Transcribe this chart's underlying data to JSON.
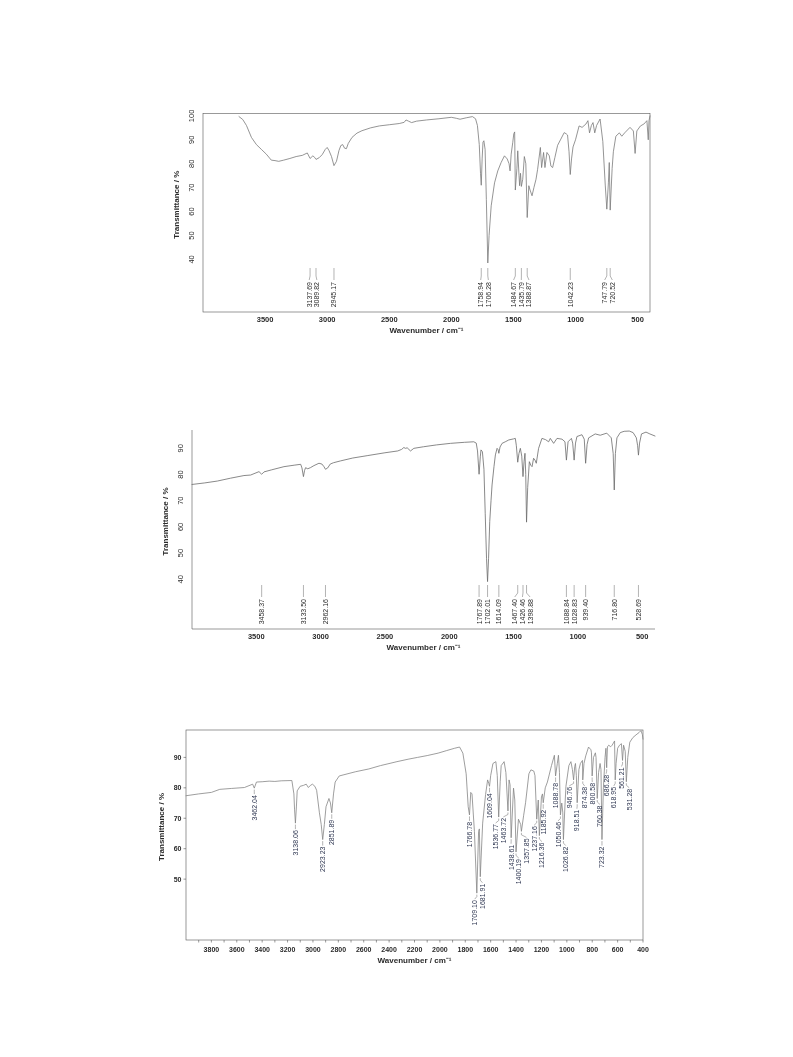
{
  "chart_data": [
    {
      "type": "line",
      "xlabel": "Wavenumber / cm⁻¹",
      "ylabel": "Transmittance / %",
      "xlim": [
        4000,
        400
      ],
      "ylim": [
        18,
        101
      ],
      "xticks": [
        3500,
        3000,
        2500,
        2000,
        1500,
        1000,
        500
      ],
      "yticks": [
        40,
        50,
        60,
        70,
        80,
        90,
        100
      ],
      "x": [
        3710,
        3680,
        3650,
        3610,
        3570,
        3530,
        3490,
        3450,
        3420,
        3390,
        3350,
        3300,
        3250,
        3200,
        3160,
        3137.69,
        3115,
        3100,
        3089.82,
        3065,
        3040,
        3015,
        3000,
        2985,
        2965,
        2945.17,
        2925,
        2905,
        2890,
        2875,
        2860,
        2845,
        2830,
        2800,
        2760,
        2720,
        2650,
        2580,
        2500,
        2420,
        2380,
        2365,
        2345,
        2320,
        2280,
        2200,
        2100,
        2000,
        1960,
        1930,
        1880,
        1830,
        1805,
        1790,
        1775,
        1765,
        1758.94,
        1752,
        1745,
        1738,
        1728,
        1718,
        1706.28,
        1696,
        1679,
        1652,
        1626,
        1599,
        1572,
        1550,
        1535,
        1527,
        1518,
        1505,
        1497,
        1490,
        1484.67,
        1472,
        1465,
        1455,
        1450,
        1443,
        1435.79,
        1425,
        1412,
        1400,
        1388.87,
        1376,
        1366,
        1350,
        1335,
        1318,
        1305,
        1283,
        1273,
        1257,
        1246,
        1230,
        1211,
        1198,
        1184,
        1166,
        1144,
        1118,
        1091,
        1075,
        1064,
        1052,
        1042.23,
        1032,
        1020,
        1000,
        971,
        947,
        916,
        900,
        887,
        872,
        859,
        845,
        830,
        802,
        780,
        760,
        747.79,
        735,
        728,
        720.52,
        705,
        695,
        675,
        647,
        627,
        604,
        561,
        534,
        520,
        506,
        477,
        449,
        425,
        414,
        408,
        400
      ],
      "series": [
        {
          "color": "#7a7a7a",
          "values": [
            99.7,
            98.5,
            96,
            91,
            88,
            86,
            84,
            81.5,
            81.3,
            81,
            81.5,
            82.2,
            83,
            83.5,
            84.5,
            82.2,
            83.3,
            82.6,
            81.8,
            82.5,
            83.8,
            86,
            86.8,
            85.5,
            83,
            79.2,
            81,
            85.5,
            87.6,
            88,
            86.5,
            86.3,
            88.5,
            91,
            92.8,
            93.8,
            95,
            95.8,
            96.3,
            96.8,
            97.3,
            98.3,
            97.8,
            97.2,
            97.8,
            98.3,
            98.8,
            99.4,
            99,
            98.6,
            99.2,
            99.7,
            98.8,
            96,
            88,
            76,
            71,
            82,
            89,
            89.6,
            86,
            65,
            38.5,
            50,
            62.4,
            72,
            77,
            80.5,
            83.3,
            82,
            80,
            77,
            84,
            89,
            92.5,
            93.3,
            69,
            78,
            85.4,
            75,
            70.8,
            76,
            70.5,
            73.5,
            83,
            80,
            57.5,
            70.8,
            69,
            66.6,
            70,
            73.5,
            77.7,
            86.8,
            78.4,
            84.7,
            78.4,
            84.7,
            83.3,
            79,
            78.4,
            82.6,
            87.7,
            90.3,
            93,
            92.5,
            92,
            85,
            75.5,
            82,
            87,
            90,
            95.8,
            95.2,
            96.6,
            98,
            92.9,
            96,
            97.2,
            92.9,
            96,
            98.7,
            89.3,
            70.7,
            61,
            72,
            80.5,
            60.6,
            78,
            85,
            91.5,
            92.9,
            91.5,
            92.9,
            95.2,
            93.7,
            84.3,
            93.7,
            95.8,
            96.6,
            98,
            90,
            98,
            100
          ]
        }
      ],
      "annotations": [
        {
          "text": "3137.69",
          "x": 3137.69
        },
        {
          "text": "3089.82",
          "x": 3089.82
        },
        {
          "text": "2945.17",
          "x": 2945.17
        },
        {
          "text": "1758.94",
          "x": 1758.94
        },
        {
          "text": "1706.28",
          "x": 1706.28
        },
        {
          "text": "1484.67",
          "x": 1484.67
        },
        {
          "text": "1435.79",
          "x": 1435.79
        },
        {
          "text": "1388.87",
          "x": 1388.87
        },
        {
          "text": "1042.23",
          "x": 1042.23
        },
        {
          "text": "747.79",
          "x": 747.79
        },
        {
          "text": "720.52",
          "x": 720.52
        }
      ]
    },
    {
      "type": "line",
      "xlabel": "Wavenumber / cm⁻¹",
      "ylabel": "Transmittance / %",
      "xlim": [
        4000,
        400
      ],
      "ylim": [
        21,
        97
      ],
      "xticks": [
        3500,
        3000,
        2500,
        2000,
        1500,
        1000,
        500
      ],
      "yticks": [
        40,
        50,
        60,
        70,
        80,
        90
      ],
      "x": [
        4000,
        3900,
        3803,
        3700,
        3596,
        3544,
        3479,
        3458.37,
        3440,
        3380,
        3285,
        3200,
        3155,
        3145,
        3133.5,
        3125,
        3117,
        3100,
        3080,
        3052,
        3013,
        2990,
        2974,
        2962.16,
        2945,
        2925,
        2900,
        2845,
        2750,
        2638,
        2500,
        2400,
        2370,
        2353,
        2340,
        2327,
        2301,
        2275,
        2200,
        2100,
        1990,
        1880,
        1809,
        1790,
        1780,
        1767.89,
        1758,
        1753,
        1742,
        1730,
        1720,
        1710,
        1702.01,
        1694,
        1685,
        1675,
        1667,
        1652,
        1641,
        1628,
        1620,
        1614.09,
        1605,
        1589,
        1560,
        1537,
        1500,
        1486,
        1478,
        1467.4,
        1458,
        1447,
        1436,
        1426.46,
        1418,
        1411,
        1405,
        1398.88,
        1390,
        1377,
        1365,
        1356,
        1344,
        1333,
        1323,
        1305,
        1279,
        1250,
        1227,
        1214,
        1188,
        1162,
        1123,
        1100,
        1088.84,
        1076,
        1050,
        1040,
        1028.83,
        1018,
        1007,
        968,
        950,
        939.4,
        928,
        916,
        865,
        826,
        775,
        740,
        725,
        716.8,
        708,
        696,
        670,
        640,
        600,
        570,
        545,
        535,
        528.69,
        520,
        505,
        470,
        440,
        400
      ],
      "series": [
        {
          "color": "#6b6b6b",
          "values": [
            76.2,
            76.8,
            77.5,
            78.6,
            79.6,
            79.8,
            81.1,
            80.1,
            81,
            81.8,
            83,
            83.6,
            83.9,
            82.5,
            79.2,
            81.5,
            82.6,
            82.2,
            82.6,
            83.4,
            84.3,
            84,
            83,
            82,
            82.5,
            84,
            84.5,
            85.2,
            86.3,
            87.2,
            88.3,
            89,
            89.6,
            90.3,
            90,
            90.2,
            89,
            90,
            90.6,
            91.3,
            91.9,
            92.3,
            92.5,
            92,
            89,
            80.1,
            87,
            89.4,
            88.7,
            82,
            65,
            48,
            39.1,
            48,
            62,
            70,
            76,
            83,
            87.5,
            90,
            89.5,
            88.1,
            90.5,
            91.9,
            92.6,
            93.2,
            93.6,
            93.8,
            91,
            84.7,
            88,
            90,
            87,
            79.2,
            85,
            88.1,
            80,
            61.8,
            75,
            84.9,
            83.5,
            83,
            86.2,
            85.5,
            84.3,
            90,
            93.8,
            93.3,
            92.5,
            93.8,
            91.9,
            93.8,
            93.5,
            92.5,
            85.5,
            92.5,
            93.8,
            92,
            85.5,
            92,
            94.5,
            95.2,
            93.5,
            84.3,
            91.5,
            94,
            95.5,
            95,
            95.8,
            94,
            88,
            74.1,
            88,
            94,
            96,
            96.5,
            96.6,
            96,
            94,
            91,
            87.4,
            92,
            95.5,
            96.2,
            95.5,
            94.7
          ]
        }
      ],
      "annotations": [
        {
          "text": "3458.37",
          "x": 3458.37
        },
        {
          "text": "3133.50",
          "x": 3133.5
        },
        {
          "text": "2962.16",
          "x": 2962.16
        },
        {
          "text": "1767.89",
          "x": 1767.89
        },
        {
          "text": "1702.01",
          "x": 1702.01
        },
        {
          "text": "1614.09",
          "x": 1614.09
        },
        {
          "text": "1467.40",
          "x": 1467.4
        },
        {
          "text": "1426.46",
          "x": 1426.46
        },
        {
          "text": "1398.88",
          "x": 1398.88
        },
        {
          "text": "1088.84",
          "x": 1088.84
        },
        {
          "text": "1028.83",
          "x": 1028.83
        },
        {
          "text": "939.40",
          "x": 939.4
        },
        {
          "text": "716.80",
          "x": 716.8
        },
        {
          "text": "528.69",
          "x": 528.69
        }
      ]
    },
    {
      "type": "line",
      "xlabel": "Wavenumber / cm⁻¹",
      "ylabel": "Transmittance / %",
      "xlim": [
        4000,
        400
      ],
      "ylim": [
        30,
        99
      ],
      "xticks": [
        {
          "value": 3900,
          "label": null
        },
        3800,
        {
          "value": 3700,
          "label": null
        },
        3600,
        {
          "value": 3500,
          "label": null
        },
        3400,
        {
          "value": 3300,
          "label": null
        },
        3200,
        {
          "value": 3100,
          "label": null
        },
        3000,
        {
          "value": 2900,
          "label": null
        },
        2800,
        {
          "value": 2700,
          "label": null
        },
        2600,
        {
          "value": 2500,
          "label": null
        },
        2400,
        {
          "value": 2300,
          "label": null
        },
        2200,
        {
          "value": 2100,
          "label": null
        },
        2000,
        {
          "value": 1900,
          "label": null
        },
        1800,
        {
          "value": 1700,
          "label": null
        },
        1600,
        {
          "value": 1500,
          "label": null
        },
        1400,
        {
          "value": 1300,
          "label": null
        },
        1200,
        {
          "value": 1100,
          "label": null
        },
        1000,
        {
          "value": 900,
          "label": null
        },
        800,
        {
          "value": 700,
          "label": null
        },
        600,
        {
          "value": 500,
          "label": null
        },
        400
      ],
      "yticks": [
        50,
        60,
        70,
        80,
        90
      ],
      "x": [
        4000,
        3900,
        3800,
        3734,
        3640,
        3540,
        3475,
        3462.04,
        3445,
        3400,
        3345,
        3300,
        3250,
        3166,
        3150,
        3145,
        3138.06,
        3130,
        3124,
        3101,
        3075,
        3053,
        3036,
        3020,
        3004,
        2985,
        2971,
        2949,
        2935,
        2923.23,
        2910,
        2897,
        2874,
        2862,
        2851.89,
        2838,
        2825,
        2793,
        2663,
        2560,
        2468,
        2338,
        2250,
        2176,
        2100,
        2014,
        1950,
        1884,
        1845,
        1819,
        1793,
        1777,
        1766.78,
        1757,
        1747,
        1728,
        1709.1,
        1695,
        1689,
        1681.91,
        1663,
        1640,
        1624,
        1615,
        1609.04,
        1600,
        1582,
        1559,
        1548,
        1536.77,
        1525,
        1517,
        1494,
        1480,
        1463.72,
        1455,
        1447,
        1438.61,
        1420,
        1410,
        1400.19,
        1381,
        1364,
        1357.85,
        1340,
        1325,
        1299,
        1283,
        1260,
        1251,
        1237.16,
        1225,
        1216.36,
        1200,
        1192,
        1185.92,
        1170,
        1153,
        1121,
        1098,
        1088.78,
        1075,
        1066,
        1058,
        1050.46,
        1040,
        1032,
        1026.82,
        1015,
        1007,
        984,
        968,
        956,
        946.76,
        938,
        932,
        925,
        918.51,
        905,
        893,
        877,
        874.38,
        865,
        851,
        829,
        810,
        806,
        800.58,
        790,
        775,
        770,
        760.38,
        750,
        738,
        731,
        723.32,
        712,
        699,
        692,
        686.28,
        680,
        670,
        655,
        643,
        624,
        618.95,
        612,
        600,
        585,
        570,
        561.21,
        553,
        540,
        531.28,
        520,
        504,
        480,
        455,
        430,
        416,
        405,
        400
      ],
      "series": [
        {
          "color": "#858585",
          "values": [
            77.4,
            78,
            78.5,
            79.5,
            79.8,
            80.1,
            81.2,
            79.9,
            81.9,
            82,
            82.2,
            82.1,
            82.3,
            82.4,
            78,
            73,
            68.4,
            74,
            79,
            80.5,
            80.8,
            81.2,
            80.1,
            80.8,
            81.2,
            80.5,
            79.2,
            71.8,
            68,
            63,
            68,
            73.8,
            76.5,
            75,
            71.8,
            78,
            81.9,
            83.9,
            85.3,
            86.2,
            87.3,
            88.6,
            89.4,
            90,
            90.6,
            91.4,
            92.2,
            93,
            93.4,
            91.4,
            84.6,
            73.8,
            71.1,
            78.5,
            78,
            65.7,
            45.4,
            65.7,
            66.5,
            50.8,
            68.4,
            77.8,
            82.6,
            81.5,
            80.5,
            84,
            88,
            88.6,
            84,
            70.4,
            82,
            87.3,
            88.6,
            85,
            72.4,
            82.6,
            81,
            63.6,
            79.9,
            76,
            58.9,
            69.7,
            68,
            65.7,
            71,
            75.1,
            84.6,
            85.9,
            85.5,
            84,
            69.7,
            76,
            64.3,
            77,
            78,
            75.1,
            80,
            81.9,
            87.3,
            90.7,
            83.9,
            88,
            90.7,
            85,
            71.1,
            75,
            72,
            63,
            74,
            80.5,
            87.3,
            88.6,
            86,
            82.6,
            87,
            88,
            84,
            75.1,
            86,
            88,
            89,
            82.6,
            88,
            90.5,
            93.4,
            92.5,
            91.5,
            83.9,
            90,
            91.5,
            90,
            76.5,
            85,
            88,
            86,
            63,
            80,
            90,
            93,
            86.6,
            93.5,
            94,
            93.5,
            94,
            95.4,
            82.6,
            88,
            93,
            94,
            94.5,
            89,
            94,
            92,
            82,
            90,
            95,
            96.5,
            97.4,
            98.2,
            98.8,
            97.5,
            96
          ]
        }
      ],
      "annotations": [
        {
          "text": "3462.04",
          "x": 3462.04,
          "y": 79.9
        },
        {
          "text": "3138.06",
          "x": 3138.06,
          "y": 68.4
        },
        {
          "text": "2923.23",
          "x": 2923.23,
          "y": 63
        },
        {
          "text": "2851.89",
          "x": 2851.89,
          "y": 71.8
        },
        {
          "text": "1766.78",
          "x": 1766.78,
          "y": 71.1
        },
        {
          "text": "1709.10",
          "x": 1709.1,
          "y": 45.4
        },
        {
          "text": "1681.91",
          "x": 1681.91,
          "y": 50.8
        },
        {
          "text": "1609.04",
          "x": 1609.04,
          "y": 80.5
        },
        {
          "text": "1536.77",
          "x": 1536.77,
          "y": 70.4
        },
        {
          "text": "1463.72",
          "x": 1463.72,
          "y": 72.4
        },
        {
          "text": "1438.61",
          "x": 1438.61,
          "y": 63.6
        },
        {
          "text": "1400.19",
          "x": 1400.19,
          "y": 58.9
        },
        {
          "text": "1357.85",
          "x": 1357.85,
          "y": 65.7
        },
        {
          "text": "1237.16",
          "x": 1237.16,
          "y": 69.7
        },
        {
          "text": "1216.36",
          "x": 1216.36,
          "y": 64.3
        },
        {
          "text": "1185.92",
          "x": 1185.92,
          "y": 75.1
        },
        {
          "text": "1088.78",
          "x": 1088.78,
          "y": 83.9
        },
        {
          "text": "1050.46",
          "x": 1050.46,
          "y": 71.1
        },
        {
          "text": "1026.82",
          "x": 1026.82,
          "y": 63
        },
        {
          "text": "946.76",
          "x": 946.76,
          "y": 82.6
        },
        {
          "text": "918.51",
          "x": 918.51,
          "y": 75.1
        },
        {
          "text": "874.38",
          "x": 874.38,
          "y": 82.6
        },
        {
          "text": "800.58",
          "x": 800.58,
          "y": 83.9
        },
        {
          "text": "760.38",
          "x": 760.38,
          "y": 76.5
        },
        {
          "text": "723.32",
          "x": 723.32,
          "y": 63
        },
        {
          "text": "686.28",
          "x": 686.28,
          "y": 86.6
        },
        {
          "text": "618.95",
          "x": 618.95,
          "y": 82.6
        },
        {
          "text": "561.21",
          "x": 561.21,
          "y": 89
        },
        {
          "text": "531.28",
          "x": 531.28,
          "y": 82
        }
      ]
    }
  ]
}
